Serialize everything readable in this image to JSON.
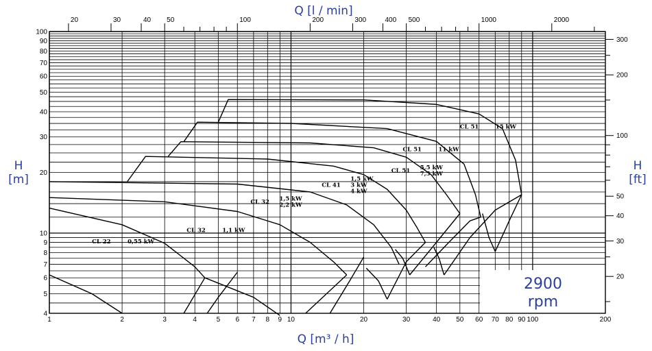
{
  "colors": {
    "accent": "#2b3f9e",
    "grid": "#000000",
    "curve": "#000000"
  },
  "chart_data": {
    "type": "line",
    "title": "",
    "xlabel": "Q [m³ / h]",
    "xlabel_top": "Q [l / min]",
    "ylabel_left": {
      "symbol": "H",
      "unit": "[m]"
    },
    "ylabel_right": {
      "symbol": "H",
      "unit": "[ft]"
    },
    "x_scale": "log",
    "y_scale": "log",
    "xlim": [
      1,
      200
    ],
    "ylim": [
      4,
      100
    ],
    "grid": true,
    "speed_label": {
      "value": "2900",
      "unit": "rpm"
    },
    "x_ticks": [
      {
        "v": 1,
        "t": "1"
      },
      {
        "v": 2,
        "t": "2"
      },
      {
        "v": 3,
        "t": "3"
      },
      {
        "v": 4,
        "t": "4"
      },
      {
        "v": 5,
        "t": "5"
      },
      {
        "v": 6,
        "t": "6"
      },
      {
        "v": 7,
        "t": "7"
      },
      {
        "v": 8,
        "t": "8"
      },
      {
        "v": 9,
        "t": "9"
      },
      {
        "v": 10,
        "t": "10"
      },
      {
        "v": 20,
        "t": "20"
      },
      {
        "v": 30,
        "t": "30"
      },
      {
        "v": 40,
        "t": "40"
      },
      {
        "v": 50,
        "t": "50"
      },
      {
        "v": 60,
        "t": "60"
      },
      {
        "v": 70,
        "t": "70"
      },
      {
        "v": 80,
        "t": "80"
      },
      {
        "v": 90,
        "t": "90"
      },
      {
        "v": 100,
        "t": "100"
      },
      {
        "v": 200,
        "t": "200"
      }
    ],
    "y_ticks": [
      {
        "v": 4,
        "t": "4"
      },
      {
        "v": 5,
        "t": "5"
      },
      {
        "v": 6,
        "t": "6"
      },
      {
        "v": 7,
        "t": "7"
      },
      {
        "v": 8,
        "t": "8"
      },
      {
        "v": 9,
        "t": "9"
      },
      {
        "v": 10,
        "t": "10"
      },
      {
        "v": 20,
        "t": "20"
      },
      {
        "v": 30,
        "t": "30"
      },
      {
        "v": 40,
        "t": "40"
      },
      {
        "v": 50,
        "t": "50"
      },
      {
        "v": 60,
        "t": "60"
      },
      {
        "v": 70,
        "t": "70"
      },
      {
        "v": 80,
        "t": "80"
      },
      {
        "v": 90,
        "t": "90"
      },
      {
        "v": 100,
        "t": "100"
      }
    ],
    "top_ticks": [
      {
        "v": 20,
        "t": "20"
      },
      {
        "v": 30,
        "t": "30"
      },
      {
        "v": 40,
        "t": "40"
      },
      {
        "v": 50,
        "t": "50"
      },
      {
        "v": 100,
        "t": "100"
      },
      {
        "v": 200,
        "t": "200"
      },
      {
        "v": 300,
        "t": "300"
      },
      {
        "v": 400,
        "t": "400"
      },
      {
        "v": 500,
        "t": "500"
      },
      {
        "v": 1000,
        "t": "1000"
      },
      {
        "v": 2000,
        "t": "2000"
      }
    ],
    "top_minor": [
      60,
      70,
      80,
      90,
      600,
      700,
      800,
      900,
      3000
    ],
    "right_ticks": [
      {
        "v": 20,
        "t": "20"
      },
      {
        "v": 30,
        "t": "30"
      },
      {
        "v": 40,
        "t": "40"
      },
      {
        "v": 50,
        "t": "50"
      },
      {
        "v": 100,
        "t": "100"
      },
      {
        "v": 200,
        "t": "200"
      },
      {
        "v": 300,
        "t": "300"
      }
    ],
    "right_minor": [
      15,
      25,
      60,
      70,
      80,
      90,
      150,
      250
    ],
    "series": [
      {
        "points": [
          [
            1,
            6.2
          ],
          [
            1.5,
            5.0
          ],
          [
            2.0,
            4.0
          ]
        ]
      },
      {
        "points": [
          [
            1,
            13.3
          ],
          [
            2.0,
            11.0
          ],
          [
            3.0,
            8.9
          ],
          [
            4.0,
            6.8
          ],
          [
            4.4,
            6.0
          ]
        ]
      },
      {
        "points": [
          [
            3.6,
            4.0
          ],
          [
            4.4,
            6.0
          ]
        ]
      },
      {
        "points": [
          [
            4.4,
            6.0
          ],
          [
            7.0,
            4.8
          ],
          [
            9.0,
            3.9
          ]
        ]
      },
      {
        "points": [
          [
            1,
            15.0
          ],
          [
            3.0,
            14.3
          ],
          [
            6.0,
            12.8
          ],
          [
            9.0,
            11.0
          ],
          [
            12.0,
            9.0
          ],
          [
            15.0,
            7.2
          ],
          [
            17.0,
            6.2
          ]
        ]
      },
      {
        "points": [
          [
            4.5,
            4.0
          ],
          [
            5.0,
            4.8
          ],
          [
            6.0,
            6.4
          ]
        ]
      },
      {
        "points": [
          [
            11.5,
            4.0
          ],
          [
            17.0,
            6.2
          ]
        ]
      },
      {
        "points": [
          [
            1,
            18.0
          ],
          [
            6.0,
            17.5
          ],
          [
            12.0,
            16.0
          ],
          [
            17.0,
            13.8
          ],
          [
            22.0,
            11.0
          ],
          [
            26.0,
            8.5
          ],
          [
            28.0,
            7.0
          ]
        ]
      },
      {
        "points": [
          [
            14.5,
            4.0
          ],
          [
            17.5,
            5.8
          ],
          [
            20.0,
            7.6
          ]
        ]
      },
      {
        "points": [
          [
            20.5,
            6.7
          ],
          [
            23.0,
            5.8
          ],
          [
            25.0,
            4.7
          ]
        ]
      },
      {
        "points": [
          [
            2.1,
            18.0
          ],
          [
            2.5,
            24.0
          ],
          [
            8.0,
            23.3
          ],
          [
            15.0,
            21.5
          ],
          [
            20.0,
            19.5
          ],
          [
            25.0,
            16.5
          ],
          [
            30.0,
            13.0
          ],
          [
            33.0,
            10.8
          ],
          [
            36.0,
            9.0
          ]
        ]
      },
      {
        "points": [
          [
            25.0,
            4.7
          ],
          [
            30.0,
            7.2
          ],
          [
            36.0,
            9.0
          ]
        ]
      },
      {
        "points": [
          [
            27.0,
            8.3
          ],
          [
            29.0,
            7.5
          ],
          [
            31.0,
            6.2
          ]
        ]
      },
      {
        "points": [
          [
            3.1,
            24.0
          ],
          [
            3.5,
            28.4
          ],
          [
            12.0,
            28.0
          ],
          [
            22.0,
            26.5
          ],
          [
            30.0,
            23.8
          ],
          [
            38.0,
            19.5
          ],
          [
            44.0,
            15.5
          ],
          [
            50.0,
            12.5
          ]
        ]
      },
      {
        "points": [
          [
            31.0,
            6.2
          ],
          [
            40.0,
            9.0
          ],
          [
            50.0,
            12.5
          ]
        ]
      },
      {
        "points": [
          [
            3.6,
            28.4
          ],
          [
            4.1,
            35.5
          ],
          [
            10.0,
            35.0
          ],
          [
            25.0,
            33.0
          ],
          [
            40.0,
            28.5
          ],
          [
            52.0,
            22.0
          ],
          [
            58.0,
            15.5
          ],
          [
            61.0,
            12.0
          ]
        ]
      },
      {
        "points": [
          [
            36.0,
            6.8
          ],
          [
            45.0,
            9.0
          ],
          [
            55.0,
            11.5
          ],
          [
            61.0,
            12.0
          ]
        ]
      },
      {
        "points": [
          [
            39.0,
            8.5
          ],
          [
            41.0,
            7.5
          ],
          [
            43.0,
            6.2
          ]
        ]
      },
      {
        "points": [
          [
            5.0,
            35.5
          ],
          [
            5.5,
            46.0
          ],
          [
            20.0,
            45.8
          ],
          [
            40.0,
            43.5
          ],
          [
            60.0,
            39.0
          ],
          [
            75.0,
            33.0
          ],
          [
            85.0,
            23.0
          ],
          [
            90.0,
            15.5
          ]
        ]
      },
      {
        "points": [
          [
            43.0,
            6.2
          ],
          [
            55.0,
            9.5
          ],
          [
            70.0,
            13.0
          ],
          [
            90.0,
            15.5
          ]
        ]
      },
      {
        "points": [
          [
            62.0,
            12.5
          ],
          [
            66.0,
            9.5
          ],
          [
            70.0,
            8.1
          ]
        ]
      },
      {
        "points": [
          [
            70.0,
            8.1
          ],
          [
            80.0,
            11.5
          ],
          [
            90.0,
            15.5
          ]
        ]
      }
    ],
    "labels": [
      {
        "lines": [
          "CL 22",
          "0,55 kW"
        ],
        "x": 1.5,
        "y": 8.9,
        "layout": "inline"
      },
      {
        "lines": [
          "CL 32",
          "1,1 kW"
        ],
        "x": 3.7,
        "y": 10.1,
        "layout": "inline"
      },
      {
        "lines": [
          "CL 32",
          "1,5 kW",
          "2,2 kW"
        ],
        "x": 6.8,
        "y": 14.0,
        "layout": "stack"
      },
      {
        "lines": [
          "CL 41",
          "1,5 kW",
          "3 kW",
          "4 kW"
        ],
        "x": 13.4,
        "y": 17.0,
        "layout": "stack"
      },
      {
        "lines": [
          "CL 51",
          "5,5 kW",
          "7,5 kW"
        ],
        "x": 26.0,
        "y": 20.0,
        "layout": "stack"
      },
      {
        "lines": [
          "CL 51",
          "11 kW"
        ],
        "x": 29.0,
        "y": 25.5,
        "layout": "inline"
      },
      {
        "lines": [
          "CL 51",
          "15 kW"
        ],
        "x": 50.0,
        "y": 33.0,
        "layout": "inline"
      }
    ]
  }
}
